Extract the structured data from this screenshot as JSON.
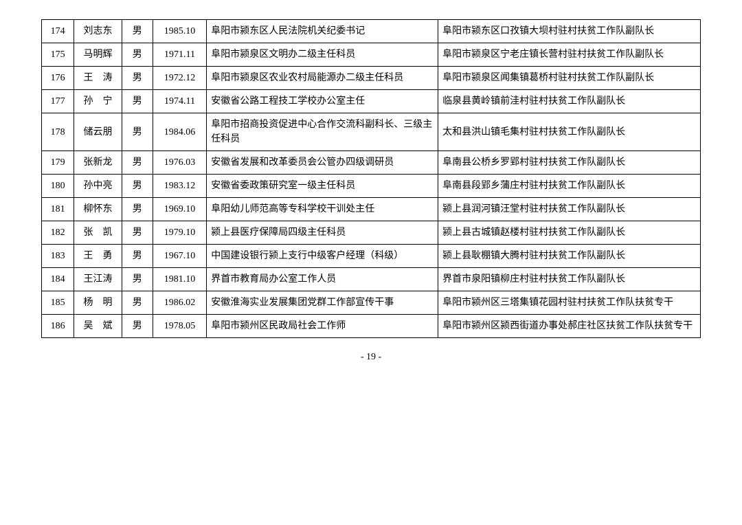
{
  "page_number": "- 19 -",
  "rows": [
    {
      "idx": "174",
      "name": "刘志东",
      "gender": "男",
      "dob": "1985.10",
      "work": "阜阳市颍东区人民法院机关纪委书记",
      "assign": "阜阳市颍东区口孜镇大坝村驻村扶贫工作队副队长"
    },
    {
      "idx": "175",
      "name": "马明辉",
      "gender": "男",
      "dob": "1971.11",
      "work": "阜阳市颍泉区文明办二级主任科员",
      "assign": "阜阳市颍泉区宁老庄镇长营村驻村扶贫工作队副队长"
    },
    {
      "idx": "176",
      "name": "王　涛",
      "gender": "男",
      "dob": "1972.12",
      "work": "阜阳市颍泉区农业农村局能源办二级主任科员",
      "assign": "阜阳市颍泉区闻集镇葛桥村驻村扶贫工作队副队长"
    },
    {
      "idx": "177",
      "name": "孙　宁",
      "gender": "男",
      "dob": "1974.11",
      "work": "安徽省公路工程技工学校办公室主任",
      "assign": "临泉县黄岭镇前洼村驻村扶贫工作队副队长"
    },
    {
      "idx": "178",
      "name": "储云朋",
      "gender": "男",
      "dob": "1984.06",
      "work": "阜阳市招商投资促进中心合作交流科副科长、三级主任科员",
      "assign": "太和县洪山镇毛集村驻村扶贫工作队副队长"
    },
    {
      "idx": "179",
      "name": "张新龙",
      "gender": "男",
      "dob": "1976.03",
      "work": "安徽省发展和改革委员会公管办四级调研员",
      "assign": "阜南县公桥乡罗郢村驻村扶贫工作队副队长"
    },
    {
      "idx": "180",
      "name": "孙中亮",
      "gender": "男",
      "dob": "1983.12",
      "work": "安徽省委政策研究室一级主任科员",
      "assign": "阜南县段郢乡蒲庄村驻村扶贫工作队副队长"
    },
    {
      "idx": "181",
      "name": "柳怀东",
      "gender": "男",
      "dob": "1969.10",
      "work": "阜阳幼儿师范高等专科学校干训处主任",
      "assign": "颍上县润河镇汪堂村驻村扶贫工作队副队长"
    },
    {
      "idx": "182",
      "name": "张　凯",
      "gender": "男",
      "dob": "1979.10",
      "work": "颍上县医疗保障局四级主任科员",
      "assign": "颍上县古城镇赵楼村驻村扶贫工作队副队长"
    },
    {
      "idx": "183",
      "name": "王　勇",
      "gender": "男",
      "dob": "1967.10",
      "work": "中国建设银行颍上支行中级客户经理（科级）",
      "assign": "颍上县耿棚镇大腾村驻村扶贫工作队副队长"
    },
    {
      "idx": "184",
      "name": "王江涛",
      "gender": "男",
      "dob": "1981.10",
      "work": "界首市教育局办公室工作人员",
      "assign": "界首市泉阳镇柳庄村驻村扶贫工作队副队长"
    },
    {
      "idx": "185",
      "name": "杨　明",
      "gender": "男",
      "dob": "1986.02",
      "work": "安徽淮海实业发展集团党群工作部宣传干事",
      "assign": "阜阳市颍州区三塔集镇花园村驻村扶贫工作队扶贫专干"
    },
    {
      "idx": "186",
      "name": "吴　斌",
      "gender": "男",
      "dob": "1978.05",
      "work": "阜阳市颍州区民政局社会工作师",
      "assign": "阜阳市颍州区颍西街道办事处郝庄社区扶贫工作队扶贫专干"
    }
  ]
}
